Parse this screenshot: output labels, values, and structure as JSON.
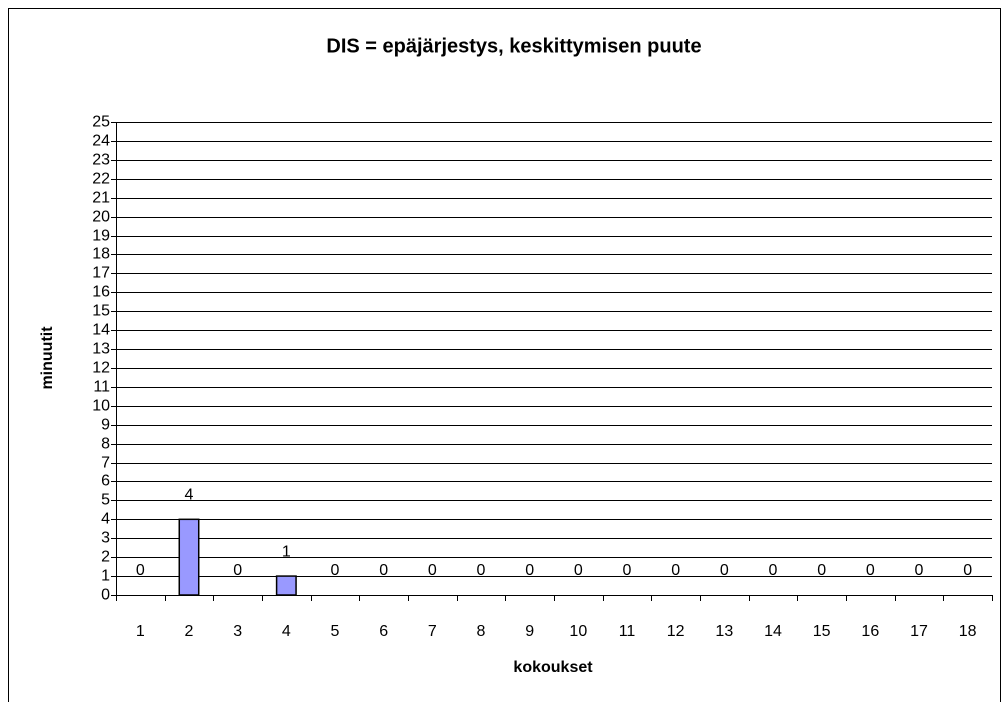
{
  "chart_data": {
    "type": "bar",
    "title": "DIS = epäjärjestys, keskittymisen puute",
    "x_label": "kokoukset",
    "y_label": "minuutit",
    "categories": [
      "1",
      "2",
      "3",
      "4",
      "5",
      "6",
      "7",
      "8",
      "9",
      "10",
      "11",
      "12",
      "13",
      "14",
      "15",
      "16",
      "17",
      "18"
    ],
    "values": [
      0,
      4,
      0,
      1,
      0,
      0,
      0,
      0,
      0,
      0,
      0,
      0,
      0,
      0,
      0,
      0,
      0,
      0
    ],
    "color": "#9999ff",
    "ylim": [
      0,
      25
    ],
    "yticks": [
      0,
      1,
      2,
      3,
      4,
      5,
      6,
      7,
      8,
      9,
      10,
      11,
      12,
      13,
      14,
      15,
      16,
      17,
      18,
      19,
      20,
      21,
      22,
      23,
      24,
      25
    ],
    "grid": true
  }
}
